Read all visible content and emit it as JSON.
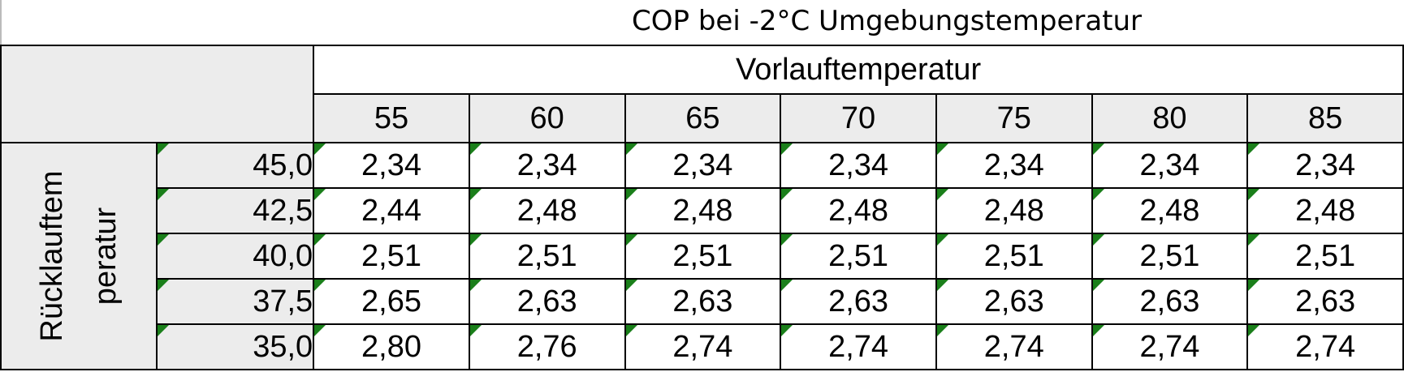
{
  "title": "COP bei -2°C Umgebungstemperatur",
  "column_group_label": "Vorlauftemperatur",
  "row_group_label_lines": [
    "Rücklauftem",
    "peratur"
  ],
  "columns": [
    "55",
    "60",
    "65",
    "70",
    "75",
    "80",
    "85"
  ],
  "rows": [
    {
      "label": "45,0",
      "values": [
        "2,34",
        "2,34",
        "2,34",
        "2,34",
        "2,34",
        "2,34",
        "2,34"
      ]
    },
    {
      "label": "42,5",
      "values": [
        "2,44",
        "2,48",
        "2,48",
        "2,48",
        "2,48",
        "2,48",
        "2,48"
      ]
    },
    {
      "label": "40,0",
      "values": [
        "2,51",
        "2,51",
        "2,51",
        "2,51",
        "2,51",
        "2,51",
        "2,51"
      ]
    },
    {
      "label": "37,5",
      "values": [
        "2,65",
        "2,63",
        "2,63",
        "2,63",
        "2,63",
        "2,63",
        "2,63"
      ]
    },
    {
      "label": "35,0",
      "values": [
        "2,80",
        "2,76",
        "2,74",
        "2,74",
        "2,74",
        "2,74",
        "2,74"
      ]
    }
  ],
  "colors": {
    "header_fill": "#ececec",
    "error_indicator": "#1a7f1a"
  }
}
